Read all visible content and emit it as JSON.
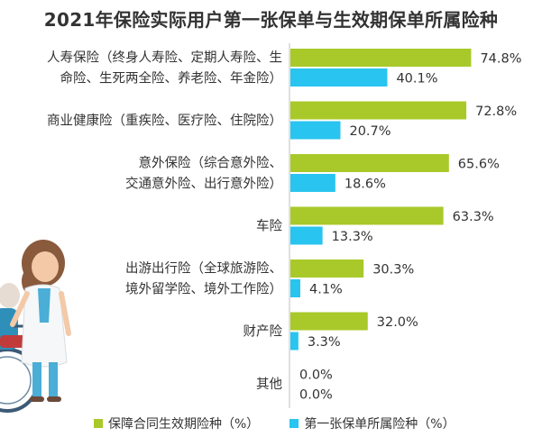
{
  "chart_data": {
    "type": "bar",
    "orientation": "horizontal",
    "title": "2021年保险实际用户第一张保单与生效期保单所属险种",
    "categories": [
      [
        "人寿保险（终身人寿险、定期人寿险、生",
        "命险、生死两全险、养老险、年金险）"
      ],
      [
        "商业健康险（重疾险、医疗险、住院险）"
      ],
      [
        "意外保险（综合意外险、",
        "交通意外险、出行意外险）"
      ],
      [
        "车险"
      ],
      [
        "出游出行险（全球旅游险、",
        "境外留学险、境外工作险）"
      ],
      [
        "财产险"
      ],
      [
        "其他"
      ]
    ],
    "series": [
      {
        "name": "保障合同生效期险种（%）",
        "color": "#a8c929",
        "values": [
          74.8,
          72.8,
          65.6,
          63.3,
          30.3,
          32.0,
          0.0
        ],
        "labels": [
          "74.8%",
          "72.8%",
          "65.6%",
          "63.3%",
          "30.3%",
          "32.0%",
          "0.0%"
        ]
      },
      {
        "name": "第一张保单所属险种（%）",
        "color": "#29c4ef",
        "values": [
          40.1,
          20.7,
          18.6,
          13.3,
          4.1,
          3.3,
          0.0
        ],
        "labels": [
          "40.1%",
          "20.7%",
          "18.6%",
          "13.3%",
          "4.1%",
          "3.3%",
          "0.0%"
        ]
      }
    ],
    "xlim": [
      0,
      100
    ],
    "grid": false,
    "legend_position": "bottom"
  }
}
